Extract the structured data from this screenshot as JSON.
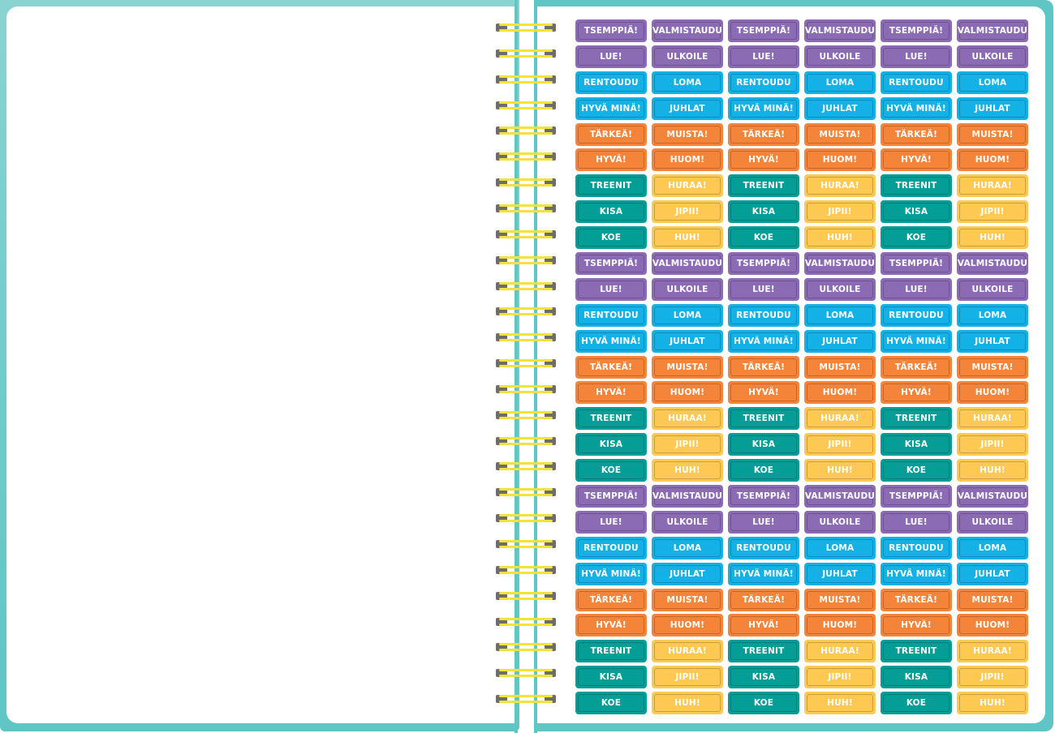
{
  "colors": {
    "cover": "#5fc5c5",
    "purple": "#8a6bb4",
    "blue": "#14b1e7",
    "orange": "#f5843b",
    "teal": "#049e97",
    "yellow": "#fec953",
    "spiral_wire": "#f2e33a"
  },
  "sticker_sheet": {
    "rows": [
      [
        {
          "text": "TSEMPPIÄ!",
          "color": "purple"
        },
        {
          "text": "VALMISTAUDU",
          "color": "purple"
        },
        {
          "text": "TSEMPPIÄ!",
          "color": "purple"
        },
        {
          "text": "VALMISTAUDU",
          "color": "purple"
        },
        {
          "text": "TSEMPPIÄ!",
          "color": "purple"
        },
        {
          "text": "VALMISTAUDU",
          "color": "purple"
        }
      ],
      [
        {
          "text": "LUE!",
          "color": "purple"
        },
        {
          "text": "ULKOILE",
          "color": "purple"
        },
        {
          "text": "LUE!",
          "color": "purple"
        },
        {
          "text": "ULKOILE",
          "color": "purple"
        },
        {
          "text": "LUE!",
          "color": "purple"
        },
        {
          "text": "ULKOILE",
          "color": "purple"
        }
      ],
      [
        {
          "text": "RENTOUDU",
          "color": "blue"
        },
        {
          "text": "LOMA",
          "color": "blue"
        },
        {
          "text": "RENTOUDU",
          "color": "blue"
        },
        {
          "text": "LOMA",
          "color": "blue"
        },
        {
          "text": "RENTOUDU",
          "color": "blue"
        },
        {
          "text": "LOMA",
          "color": "blue"
        }
      ],
      [
        {
          "text": "HYVÄ MINÄ!",
          "color": "blue"
        },
        {
          "text": "JUHLAT",
          "color": "blue"
        },
        {
          "text": "HYVÄ MINÄ!",
          "color": "blue"
        },
        {
          "text": "JUHLAT",
          "color": "blue"
        },
        {
          "text": "HYVÄ MINÄ!",
          "color": "blue"
        },
        {
          "text": "JUHLAT",
          "color": "blue"
        }
      ],
      [
        {
          "text": "TÄRKEÄ!",
          "color": "orange"
        },
        {
          "text": "MUISTA!",
          "color": "orange"
        },
        {
          "text": "TÄRKEÄ!",
          "color": "orange"
        },
        {
          "text": "MUISTA!",
          "color": "orange"
        },
        {
          "text": "TÄRKEÄ!",
          "color": "orange"
        },
        {
          "text": "MUISTA!",
          "color": "orange"
        }
      ],
      [
        {
          "text": "HYVÄ!",
          "color": "orange"
        },
        {
          "text": "HUOM!",
          "color": "orange"
        },
        {
          "text": "HYVÄ!",
          "color": "orange"
        },
        {
          "text": "HUOM!",
          "color": "orange"
        },
        {
          "text": "HYVÄ!",
          "color": "orange"
        },
        {
          "text": "HUOM!",
          "color": "orange"
        }
      ],
      [
        {
          "text": "TREENIT",
          "color": "teal"
        },
        {
          "text": "HURAA!",
          "color": "yellow"
        },
        {
          "text": "TREENIT",
          "color": "teal"
        },
        {
          "text": "HURAA!",
          "color": "yellow"
        },
        {
          "text": "TREENIT",
          "color": "teal"
        },
        {
          "text": "HURAA!",
          "color": "yellow"
        }
      ],
      [
        {
          "text": "KISA",
          "color": "teal"
        },
        {
          "text": "JIPII!",
          "color": "yellow"
        },
        {
          "text": "KISA",
          "color": "teal"
        },
        {
          "text": "JIPII!",
          "color": "yellow"
        },
        {
          "text": "KISA",
          "color": "teal"
        },
        {
          "text": "JIPII!",
          "color": "yellow"
        }
      ],
      [
        {
          "text": "KOE",
          "color": "teal"
        },
        {
          "text": "HUH!",
          "color": "yellow"
        },
        {
          "text": "KOE",
          "color": "teal"
        },
        {
          "text": "HUH!",
          "color": "yellow"
        },
        {
          "text": "KOE",
          "color": "teal"
        },
        {
          "text": "HUH!",
          "color": "yellow"
        }
      ],
      [
        {
          "text": "TSEMPPIÄ!",
          "color": "purple"
        },
        {
          "text": "VALMISTAUDU",
          "color": "purple"
        },
        {
          "text": "TSEMPPIÄ!",
          "color": "purple"
        },
        {
          "text": "VALMISTAUDU",
          "color": "purple"
        },
        {
          "text": "TSEMPPIÄ!",
          "color": "purple"
        },
        {
          "text": "VALMISTAUDU",
          "color": "purple"
        }
      ],
      [
        {
          "text": "LUE!",
          "color": "purple"
        },
        {
          "text": "ULKOILE",
          "color": "purple"
        },
        {
          "text": "LUE!",
          "color": "purple"
        },
        {
          "text": "ULKOILE",
          "color": "purple"
        },
        {
          "text": "LUE!",
          "color": "purple"
        },
        {
          "text": "ULKOILE",
          "color": "purple"
        }
      ],
      [
        {
          "text": "RENTOUDU",
          "color": "blue"
        },
        {
          "text": "LOMA",
          "color": "blue"
        },
        {
          "text": "RENTOUDU",
          "color": "blue"
        },
        {
          "text": "LOMA",
          "color": "blue"
        },
        {
          "text": "RENTOUDU",
          "color": "blue"
        },
        {
          "text": "LOMA",
          "color": "blue"
        }
      ],
      [
        {
          "text": "HYVÄ MINÄ!",
          "color": "blue"
        },
        {
          "text": "JUHLAT",
          "color": "blue"
        },
        {
          "text": "HYVÄ MINÄ!",
          "color": "blue"
        },
        {
          "text": "JUHLAT",
          "color": "blue"
        },
        {
          "text": "HYVÄ MINÄ!",
          "color": "blue"
        },
        {
          "text": "JUHLAT",
          "color": "blue"
        }
      ],
      [
        {
          "text": "TÄRKEÄ!",
          "color": "orange"
        },
        {
          "text": "MUISTA!",
          "color": "orange"
        },
        {
          "text": "TÄRKEÄ!",
          "color": "orange"
        },
        {
          "text": "MUISTA!",
          "color": "orange"
        },
        {
          "text": "TÄRKEÄ!",
          "color": "orange"
        },
        {
          "text": "MUISTA!",
          "color": "orange"
        }
      ],
      [
        {
          "text": "HYVÄ!",
          "color": "orange"
        },
        {
          "text": "HUOM!",
          "color": "orange"
        },
        {
          "text": "HYVÄ!",
          "color": "orange"
        },
        {
          "text": "HUOM!",
          "color": "orange"
        },
        {
          "text": "HYVÄ!",
          "color": "orange"
        },
        {
          "text": "HUOM!",
          "color": "orange"
        }
      ],
      [
        {
          "text": "TREENIT",
          "color": "teal"
        },
        {
          "text": "HURAA!",
          "color": "yellow"
        },
        {
          "text": "TREENIT",
          "color": "teal"
        },
        {
          "text": "HURAA!",
          "color": "yellow"
        },
        {
          "text": "TREENIT",
          "color": "teal"
        },
        {
          "text": "HURAA!",
          "color": "yellow"
        }
      ],
      [
        {
          "text": "KISA",
          "color": "teal"
        },
        {
          "text": "JIPII!",
          "color": "yellow"
        },
        {
          "text": "KISA",
          "color": "teal"
        },
        {
          "text": "JIPII!",
          "color": "yellow"
        },
        {
          "text": "KISA",
          "color": "teal"
        },
        {
          "text": "JIPII!",
          "color": "yellow"
        }
      ],
      [
        {
          "text": "KOE",
          "color": "teal"
        },
        {
          "text": "HUH!",
          "color": "yellow"
        },
        {
          "text": "KOE",
          "color": "teal"
        },
        {
          "text": "HUH!",
          "color": "yellow"
        },
        {
          "text": "KOE",
          "color": "teal"
        },
        {
          "text": "HUH!",
          "color": "yellow"
        }
      ],
      [
        {
          "text": "TSEMPPIÄ!",
          "color": "purple"
        },
        {
          "text": "VALMISTAUDU",
          "color": "purple"
        },
        {
          "text": "TSEMPPIÄ!",
          "color": "purple"
        },
        {
          "text": "VALMISTAUDU",
          "color": "purple"
        },
        {
          "text": "TSEMPPIÄ!",
          "color": "purple"
        },
        {
          "text": "VALMISTAUDU",
          "color": "purple"
        }
      ],
      [
        {
          "text": "LUE!",
          "color": "purple"
        },
        {
          "text": "ULKOILE",
          "color": "purple"
        },
        {
          "text": "LUE!",
          "color": "purple"
        },
        {
          "text": "ULKOILE",
          "color": "purple"
        },
        {
          "text": "LUE!",
          "color": "purple"
        },
        {
          "text": "ULKOILE",
          "color": "purple"
        }
      ],
      [
        {
          "text": "RENTOUDU",
          "color": "blue"
        },
        {
          "text": "LOMA",
          "color": "blue"
        },
        {
          "text": "RENTOUDU",
          "color": "blue"
        },
        {
          "text": "LOMA",
          "color": "blue"
        },
        {
          "text": "RENTOUDU",
          "color": "blue"
        },
        {
          "text": "LOMA",
          "color": "blue"
        }
      ],
      [
        {
          "text": "HYVÄ MINÄ!",
          "color": "blue"
        },
        {
          "text": "JUHLAT",
          "color": "blue"
        },
        {
          "text": "HYVÄ MINÄ!",
          "color": "blue"
        },
        {
          "text": "JUHLAT",
          "color": "blue"
        },
        {
          "text": "HYVÄ MINÄ!",
          "color": "blue"
        },
        {
          "text": "JUHLAT",
          "color": "blue"
        }
      ],
      [
        {
          "text": "TÄRKEÄ!",
          "color": "orange"
        },
        {
          "text": "MUISTA!",
          "color": "orange"
        },
        {
          "text": "TÄRKEÄ!",
          "color": "orange"
        },
        {
          "text": "MUISTA!",
          "color": "orange"
        },
        {
          "text": "TÄRKEÄ!",
          "color": "orange"
        },
        {
          "text": "MUISTA!",
          "color": "orange"
        }
      ],
      [
        {
          "text": "HYVÄ!",
          "color": "orange"
        },
        {
          "text": "HUOM!",
          "color": "orange"
        },
        {
          "text": "HYVÄ!",
          "color": "orange"
        },
        {
          "text": "HUOM!",
          "color": "orange"
        },
        {
          "text": "HYVÄ!",
          "color": "orange"
        },
        {
          "text": "HUOM!",
          "color": "orange"
        }
      ],
      [
        {
          "text": "TREENIT",
          "color": "teal"
        },
        {
          "text": "HURAA!",
          "color": "yellow"
        },
        {
          "text": "TREENIT",
          "color": "teal"
        },
        {
          "text": "HURAA!",
          "color": "yellow"
        },
        {
          "text": "TREENIT",
          "color": "teal"
        },
        {
          "text": "HURAA!",
          "color": "yellow"
        }
      ],
      [
        {
          "text": "KISA",
          "color": "teal"
        },
        {
          "text": "JIPII!",
          "color": "yellow"
        },
        {
          "text": "KISA",
          "color": "teal"
        },
        {
          "text": "JIPII!",
          "color": "yellow"
        },
        {
          "text": "KISA",
          "color": "teal"
        },
        {
          "text": "JIPII!",
          "color": "yellow"
        }
      ],
      [
        {
          "text": "KOE",
          "color": "teal"
        },
        {
          "text": "HUH!",
          "color": "yellow"
        },
        {
          "text": "KOE",
          "color": "teal"
        },
        {
          "text": "HUH!",
          "color": "yellow"
        },
        {
          "text": "KOE",
          "color": "teal"
        },
        {
          "text": "HUH!",
          "color": "yellow"
        }
      ]
    ]
  }
}
